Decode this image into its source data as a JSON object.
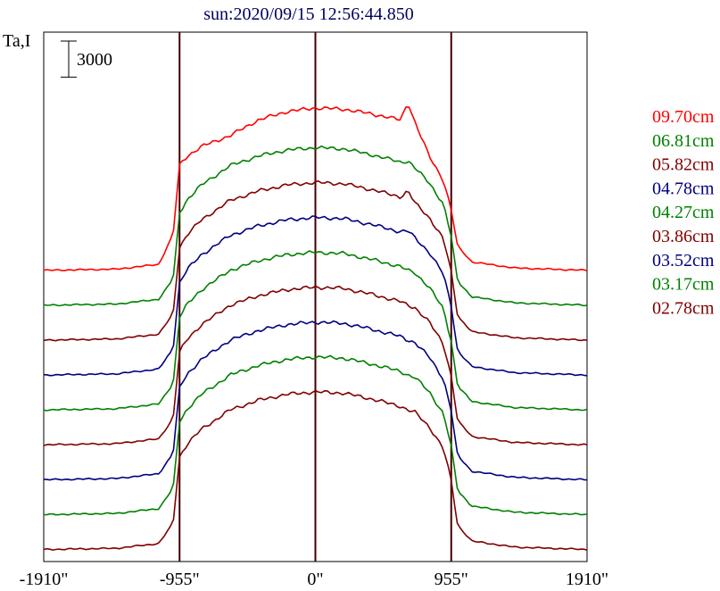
{
  "chart_data": {
    "type": "line",
    "title": "sun:2020/09/15 12:56:44.850",
    "ylabel": "Ta,I",
    "scale_bar_label": "3000",
    "scale_bar_value": 3000,
    "x_ticks": [
      {
        "value": -1910,
        "label": "-1910\""
      },
      {
        "value": -955,
        "label": "-955\""
      },
      {
        "value": 0,
        "label": "0\""
      },
      {
        "value": 955,
        "label": "955\""
      },
      {
        "value": 1910,
        "label": "1910\""
      }
    ],
    "xlim": [
      -1910,
      1910
    ],
    "vertical_markers": [
      -955,
      0,
      955
    ],
    "x": [
      -1910,
      -1400,
      -1100,
      -1000,
      -955,
      -900,
      -800,
      -600,
      -400,
      -200,
      0,
      200,
      400,
      600,
      650,
      700,
      800,
      900,
      955,
      1000,
      1100,
      1400,
      1910
    ],
    "series": [
      {
        "name": "09.70cm",
        "color": "#ff0000",
        "offset": 0,
        "values": [
          0,
          100,
          500,
          3000,
          8800,
          9500,
          10300,
          11200,
          12500,
          13200,
          13500,
          13400,
          13000,
          12500,
          14000,
          12300,
          9500,
          7500,
          5000,
          2000,
          700,
          200,
          0
        ]
      },
      {
        "name": "06.81cm",
        "color": "#008000",
        "offset": -2900,
        "values": [
          0,
          100,
          500,
          2200,
          7700,
          8800,
          10000,
          11600,
          12400,
          12900,
          13100,
          13000,
          12500,
          11900,
          12000,
          11400,
          10200,
          8400,
          5700,
          2000,
          700,
          200,
          0
        ]
      },
      {
        "name": "05.82cm",
        "color": "#800000",
        "offset": -5800,
        "values": [
          0,
          100,
          500,
          2200,
          7700,
          8800,
          10000,
          11600,
          12400,
          12900,
          13100,
          13000,
          12500,
          11900,
          12400,
          11400,
          10200,
          8400,
          5700,
          2000,
          700,
          200,
          0
        ]
      },
      {
        "name": "04.78cm",
        "color": "#000080",
        "offset": -8700,
        "values": [
          0,
          100,
          500,
          2200,
          7700,
          8800,
          10000,
          11600,
          12400,
          12900,
          13100,
          13000,
          12500,
          11900,
          12000,
          11400,
          10200,
          8400,
          5700,
          2000,
          700,
          200,
          0
        ]
      },
      {
        "name": "04.27cm",
        "color": "#008000",
        "offset": -11600,
        "values": [
          0,
          100,
          500,
          2200,
          7700,
          8800,
          10000,
          11600,
          12400,
          12900,
          13100,
          13000,
          12500,
          11900,
          11600,
          11400,
          10200,
          8400,
          5700,
          2000,
          700,
          200,
          0
        ]
      },
      {
        "name": "03.86cm",
        "color": "#800000",
        "offset": -14500,
        "values": [
          0,
          100,
          500,
          2200,
          7700,
          8800,
          10000,
          11600,
          12400,
          12900,
          13100,
          13000,
          12500,
          11900,
          11600,
          11400,
          10200,
          8400,
          5700,
          2000,
          700,
          200,
          0
        ]
      },
      {
        "name": "03.52cm",
        "color": "#000080",
        "offset": -17400,
        "values": [
          0,
          100,
          500,
          2200,
          7700,
          8800,
          10000,
          11600,
          12400,
          12900,
          13100,
          13000,
          12500,
          11900,
          11600,
          11400,
          10200,
          8400,
          5700,
          2000,
          700,
          200,
          0
        ]
      },
      {
        "name": "03.17cm",
        "color": "#008000",
        "offset": -20300,
        "values": [
          0,
          100,
          500,
          2200,
          7700,
          8800,
          10000,
          11600,
          12400,
          12900,
          13100,
          13000,
          12500,
          11900,
          11600,
          11400,
          10200,
          8400,
          5700,
          2000,
          700,
          200,
          0
        ]
      },
      {
        "name": "02.78cm",
        "color": "#800000",
        "offset": -23200,
        "values": [
          0,
          100,
          500,
          2200,
          7700,
          8800,
          10000,
          11600,
          12400,
          12900,
          13100,
          13000,
          12500,
          11900,
          11600,
          11400,
          10200,
          8400,
          5700,
          2000,
          700,
          200,
          0
        ]
      }
    ],
    "ylim": [
      -24200,
      19800
    ],
    "marker_color": "#400000",
    "title_color": "#000060",
    "grid": false
  }
}
